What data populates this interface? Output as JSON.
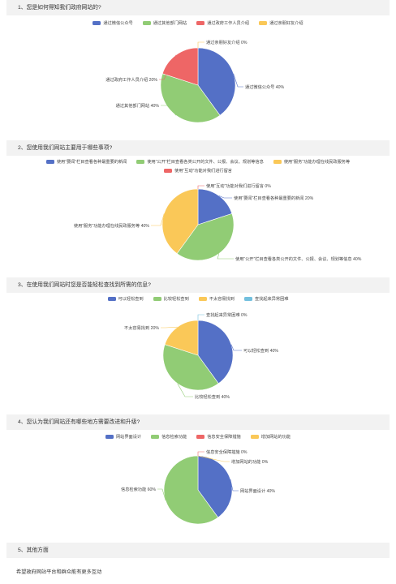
{
  "colors": [
    "#5470c6",
    "#91cc75",
    "#ee6666",
    "#fac858",
    "#73c0de"
  ],
  "chart_data": [
    {
      "type": "pie",
      "title": "1、您是如何得知我们政府网站的?",
      "legend_position": "top",
      "categories": [
        "通过微信公众号",
        "通过其他部门网站",
        "通过政府工作人员介绍",
        "通过亲朋好友介绍"
      ],
      "values": [
        40,
        40,
        20,
        0
      ],
      "colors": [
        "#5470c6",
        "#91cc75",
        "#ee6666",
        "#fac858"
      ],
      "labels": [
        "通过微信公众号  40%",
        "通过其他部门网站  40%",
        "通过政府工作人员介绍  20%",
        "通过亲朋好友介绍  0%"
      ]
    },
    {
      "type": "pie",
      "title": "2、您使用我们网站主要用于哪些事项?",
      "legend_position": "top",
      "categories": [
        "使用“要闻”栏目查看各种最重要的新闻",
        "使用“公开”栏目查看各类公开的文件、公报、会议、规划等信息",
        "使用“服务”功能办理在线民政服务等",
        "使用“互动”功能对我们进行留言"
      ],
      "values": [
        20,
        40,
        40,
        0
      ],
      "colors": [
        "#5470c6",
        "#91cc75",
        "#fac858",
        "#ee6666"
      ],
      "labels": [
        "使用“要闻”栏目查看各种最重要的新闻  20%",
        "使用“公开”栏目查看各类公开的文件、公报、会议、规划等信息  40%",
        "使用“服务”功能办理在线民政服务等  40%",
        "使用“互动”功能对我们进行留言  0%"
      ]
    },
    {
      "type": "pie",
      "title": "3、在使用我们网站时您是否能轻松查找到所需的信息?",
      "legend_position": "top",
      "categories": [
        "可以轻松查到",
        "比较轻松查到",
        "不太容易找到",
        "查找起来异常困难"
      ],
      "values": [
        40,
        40,
        20,
        0
      ],
      "colors": [
        "#5470c6",
        "#91cc75",
        "#fac858",
        "#73c0de"
      ],
      "labels": [
        "可以轻松查到  40%",
        "比较轻松查到  40%",
        "不太容易找到  20%",
        "查找起来异常困难  0%"
      ]
    },
    {
      "type": "pie",
      "title": "4、您认为我们网站还有哪些地方需要改进和升级?",
      "legend_position": "top",
      "categories": [
        "网站界面设计",
        "信息检索功能",
        "信息安全保障措施",
        "增加网站的功能"
      ],
      "values": [
        40,
        60,
        0,
        0
      ],
      "colors": [
        "#5470c6",
        "#91cc75",
        "#ee6666",
        "#fac858"
      ],
      "labels": [
        "网站界面设计  40%",
        "信息检索功能  60%",
        "信息安全保障措施  0%",
        "增加网站的功能  0%"
      ]
    }
  ],
  "q5": {
    "title": "5、其他方面",
    "answer": "希望政府网站平台和群众能有更多互动"
  }
}
